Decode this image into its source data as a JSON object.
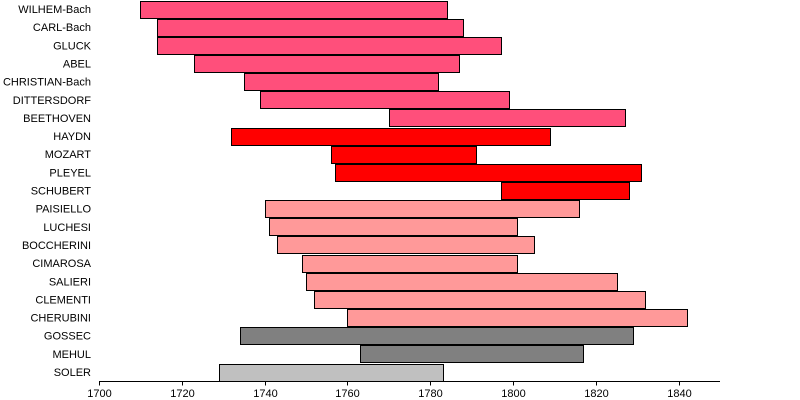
{
  "chart_data": {
    "type": "bar",
    "orientation": "horizontal",
    "title": "",
    "xlabel": "",
    "ylabel": "",
    "xlim": [
      1700,
      1850
    ],
    "xticks": [
      1700,
      1720,
      1740,
      1760,
      1780,
      1800,
      1820,
      1840
    ],
    "grid": false,
    "categories": [
      "WILHEM-Bach",
      "CARL-Bach",
      "GLUCK",
      "ABEL",
      "CHRISTIAN-Bach",
      "DITTERSDORF",
      "BEETHOVEN",
      "HAYDN",
      "MOZART",
      "PLEYEL",
      "SCHUBERT",
      "PAISIELLO",
      "LUCHESI",
      "BOCCHERINI",
      "CIMAROSA",
      "SALIERI",
      "CLEMENTI",
      "CHERUBINI",
      "GOSSEC",
      "MEHUL",
      "SOLER"
    ],
    "bars": [
      {
        "label": "WILHEM-Bach",
        "start": 1710,
        "end": 1784,
        "color": "#ff4f7b"
      },
      {
        "label": "CARL-Bach",
        "start": 1714,
        "end": 1788,
        "color": "#ff4f7b"
      },
      {
        "label": "GLUCK",
        "start": 1714,
        "end": 1797,
        "color": "#ff4f7b"
      },
      {
        "label": "ABEL",
        "start": 1723,
        "end": 1787,
        "color": "#ff4f7b"
      },
      {
        "label": "CHRISTIAN-Bach",
        "start": 1735,
        "end": 1782,
        "color": "#ff4f7b"
      },
      {
        "label": "DITTERSDORF",
        "start": 1739,
        "end": 1799,
        "color": "#ff4f7b"
      },
      {
        "label": "BEETHOVEN",
        "start": 1770,
        "end": 1827,
        "color": "#ff4f7b"
      },
      {
        "label": "HAYDN",
        "start": 1732,
        "end": 1809,
        "color": "#ff0000"
      },
      {
        "label": "MOZART",
        "start": 1756,
        "end": 1791,
        "color": "#ff0000"
      },
      {
        "label": "PLEYEL",
        "start": 1757,
        "end": 1831,
        "color": "#ff0000"
      },
      {
        "label": "SCHUBERT",
        "start": 1797,
        "end": 1828,
        "color": "#ff0000"
      },
      {
        "label": "PAISIELLO",
        "start": 1740,
        "end": 1816,
        "color": "#ff9999"
      },
      {
        "label": "LUCHESI",
        "start": 1741,
        "end": 1801,
        "color": "#ff9999"
      },
      {
        "label": "BOCCHERINI",
        "start": 1743,
        "end": 1805,
        "color": "#ff9999"
      },
      {
        "label": "CIMAROSA",
        "start": 1749,
        "end": 1801,
        "color": "#ff9999"
      },
      {
        "label": "SALIERI",
        "start": 1750,
        "end": 1825,
        "color": "#ff9999"
      },
      {
        "label": "CLEMENTI",
        "start": 1752,
        "end": 1832,
        "color": "#ff9999"
      },
      {
        "label": "CHERUBINI",
        "start": 1760,
        "end": 1842,
        "color": "#ff9999"
      },
      {
        "label": "GOSSEC",
        "start": 1734,
        "end": 1829,
        "color": "#808080"
      },
      {
        "label": "MEHUL",
        "start": 1763,
        "end": 1817,
        "color": "#808080"
      },
      {
        "label": "SOLER",
        "start": 1729,
        "end": 1783,
        "color": "#c0c0c0"
      }
    ]
  }
}
